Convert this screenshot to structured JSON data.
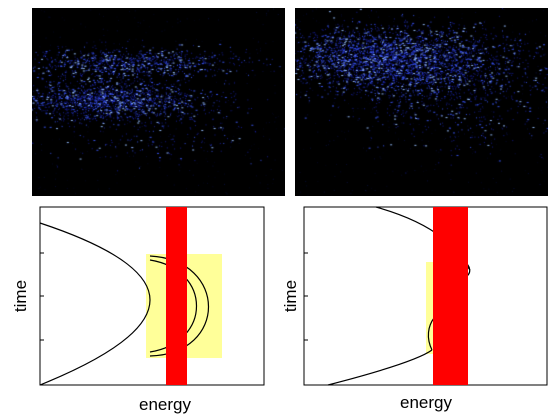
{
  "panels": [
    {
      "id": "left",
      "xlabel": "energy",
      "ylabel": "time"
    },
    {
      "id": "right",
      "xlabel": "energy",
      "ylabel": "time"
    }
  ],
  "colors": {
    "background": "#ffffff",
    "image_background": "#000000",
    "spot": "#2a3cff",
    "window_fill": "#ffff99",
    "gate_fill": "#ff0000",
    "curve": "#000000"
  }
}
